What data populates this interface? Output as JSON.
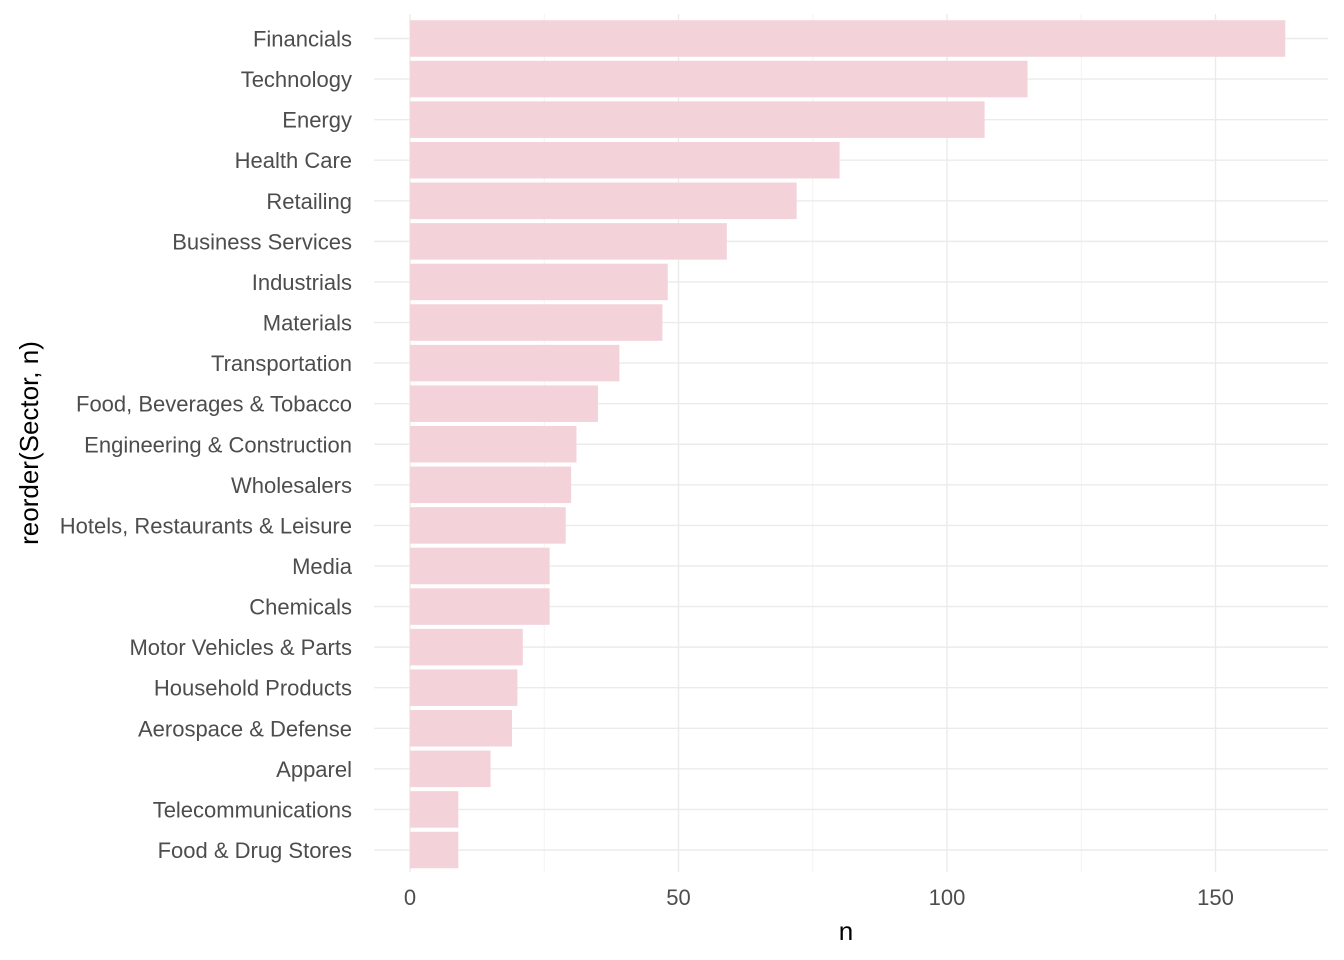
{
  "chart_data": {
    "type": "bar",
    "orientation": "horizontal",
    "categories": [
      "Financials",
      "Technology",
      "Energy",
      "Health Care",
      "Retailing",
      "Business Services",
      "Industrials",
      "Materials",
      "Transportation",
      "Food, Beverages & Tobacco",
      "Engineering & Construction",
      "Wholesalers",
      "Hotels, Restaurants & Leisure",
      "Media",
      "Chemicals",
      "Motor Vehicles & Parts",
      "Household Products",
      "Aerospace & Defense",
      "Apparel",
      "Telecommunications",
      "Food & Drug Stores"
    ],
    "values": [
      163,
      115,
      107,
      80,
      72,
      59,
      48,
      47,
      39,
      35,
      31,
      30,
      29,
      26,
      26,
      21,
      20,
      19,
      15,
      9,
      9
    ],
    "xlabel": "n",
    "ylabel": "reorder(Sector, n)",
    "xlim": [
      0,
      170
    ],
    "xticks": [
      0,
      50,
      100,
      150
    ],
    "xticks_labels": [
      "0",
      "50",
      "100",
      "150"
    ],
    "grid": true,
    "legend": "none",
    "bar_color": "#f4d2da",
    "grid_color": "#ebebeb"
  }
}
